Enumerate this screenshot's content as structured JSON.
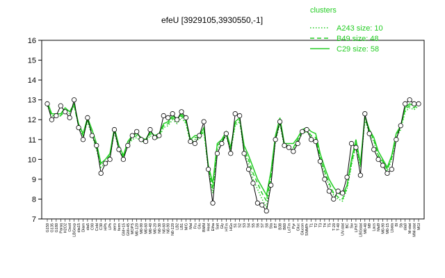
{
  "chart_data": {
    "type": "line",
    "title": "efeU [3929105,3930550,-1]",
    "xlabel": "",
    "ylabel": "",
    "ylim": [
      7,
      16
    ],
    "yticks": [
      7,
      8,
      9,
      10,
      11,
      12,
      13,
      14,
      15,
      16
    ],
    "grid": false,
    "legend": {
      "title": "clusters",
      "placement": "top-right",
      "entries": [
        {
          "label": "A243 size: 10",
          "style": "dotted"
        },
        {
          "label": "B49 size: 48",
          "style": "dashed"
        },
        {
          "label": "C29 size: 58",
          "style": "solid"
        }
      ]
    },
    "x_tick_labels": [
      "G150",
      "G135",
      "G180",
      "Paraq",
      "H2O2",
      "Oxctl",
      "LBGexp",
      "dia15",
      "Diam",
      "dia5",
      "C90",
      "Cold",
      "C30",
      "HPh",
      "LPh",
      "aero",
      "ferm",
      "GM+15",
      "GM+45",
      "MOPS",
      "M0-120",
      "M0-90",
      "M0-60",
      "M0-40",
      "M0-20",
      "N0-30",
      "N0-60",
      "N0-90",
      "N0-120",
      "LB2",
      "LB1",
      "M/G",
      "Mal",
      "Fru",
      "Glu",
      "BMM",
      "Heat",
      "Etha",
      "Salt",
      "Gly",
      "HTm",
      "HGs",
      "S1",
      "S2",
      "S3",
      "S4",
      "S5",
      "S6",
      "S7",
      "S8",
      "Sta",
      "BT",
      "B38",
      "B60",
      "LoTm",
      "Pyr",
      "Gluc",
      "Glucon",
      "SMMPr",
      "T1",
      "T2",
      "T3",
      "T4",
      "T5",
      "T-20",
      "T-40",
      "UV-stat",
      "BC",
      "Sw",
      "LPhT",
      "LBGstat",
      "M0-40",
      "M9",
      "Lacs",
      "Mal9",
      "M0-90",
      "M0-15",
      "Lbata",
      "Bl",
      "Sb",
      "dia0",
      "M-stat",
      "MM-stat",
      "MGl"
    ],
    "series": [
      {
        "name": "C29 size: 58",
        "style": "solid",
        "color": "#22cc22",
        "values": [
          12.9,
          12.3,
          12.3,
          12.3,
          12.6,
          12.4,
          12.8,
          11.8,
          11.3,
          12.1,
          11.5,
          10.8,
          9.8,
          10.0,
          10.3,
          11.6,
          10.7,
          10.2,
          10.9,
          11.2,
          11.3,
          11.1,
          11.0,
          11.4,
          11.2,
          11.3,
          11.8,
          11.9,
          12.2,
          12.0,
          12.3,
          12.0,
          11.0,
          11.2,
          11.2,
          11.6,
          9.7,
          8.8,
          10.8,
          11.0,
          11.4,
          10.6,
          11.9,
          12.1,
          10.7,
          10.2,
          9.6,
          9.0,
          8.6,
          8.2,
          9.4,
          11.2,
          12.1,
          10.8,
          10.8,
          10.8,
          11.1,
          11.5,
          11.6,
          11.4,
          11.3,
          10.3,
          9.6,
          9.0,
          8.6,
          8.3,
          8.2,
          8.7,
          10.0,
          11.0,
          9.8,
          12.2,
          11.5,
          11.1,
          10.4,
          10.0,
          9.6,
          10.2,
          11.3,
          11.7,
          12.6,
          12.8,
          12.7,
          12.9
        ]
      },
      {
        "name": "B49 size: 48",
        "style": "dashed",
        "color": "#22cc22",
        "values": [
          12.8,
          12.2,
          12.2,
          12.2,
          12.5,
          12.4,
          12.7,
          11.7,
          11.2,
          12.0,
          11.3,
          10.6,
          9.7,
          9.9,
          10.2,
          11.5,
          10.6,
          10.1,
          10.8,
          11.1,
          11.2,
          11.0,
          10.9,
          11.3,
          11.1,
          11.2,
          11.7,
          11.8,
          12.1,
          11.9,
          12.2,
          11.9,
          10.9,
          11.1,
          11.1,
          11.5,
          9.6,
          8.5,
          10.7,
          10.9,
          11.3,
          10.5,
          11.8,
          12.0,
          10.5,
          10.0,
          9.3,
          8.8,
          8.3,
          7.9,
          9.2,
          11.0,
          11.9,
          10.7,
          10.7,
          10.6,
          11.0,
          11.4,
          11.5,
          11.2,
          11.1,
          10.1,
          9.4,
          8.8,
          8.3,
          8.1,
          8.0,
          8.6,
          9.8,
          10.8,
          9.7,
          12.1,
          11.4,
          11.0,
          10.2,
          9.9,
          9.5,
          10.1,
          11.2,
          11.6,
          12.5,
          12.7,
          12.6,
          12.8
        ]
      },
      {
        "name": "A243 size: 10",
        "style": "dotted",
        "color": "#22cc22",
        "values": [
          12.7,
          12.2,
          12.1,
          12.2,
          12.4,
          12.3,
          12.7,
          11.7,
          11.2,
          11.9,
          11.2,
          10.5,
          9.6,
          9.8,
          10.1,
          11.4,
          10.5,
          10.1,
          10.7,
          11.0,
          11.1,
          10.9,
          10.9,
          11.2,
          11.0,
          11.1,
          11.6,
          11.7,
          12.0,
          11.8,
          12.1,
          11.8,
          10.8,
          11.0,
          11.0,
          11.4,
          9.5,
          8.3,
          10.5,
          10.8,
          11.2,
          10.4,
          11.7,
          11.9,
          10.4,
          9.8,
          9.0,
          8.5,
          8.0,
          7.6,
          9.0,
          10.9,
          11.8,
          10.6,
          10.6,
          10.5,
          10.9,
          11.3,
          11.4,
          11.1,
          11.0,
          10.0,
          9.3,
          8.7,
          8.2,
          8.0,
          7.9,
          8.5,
          9.7,
          10.7,
          9.6,
          12.0,
          11.3,
          10.9,
          10.1,
          9.8,
          9.4,
          10.0,
          11.1,
          11.5,
          12.4,
          12.6,
          12.5,
          12.7
        ]
      },
      {
        "name": "",
        "style": "line-with-points",
        "color": "#000000",
        "values": [
          12.8,
          12.0,
          12.2,
          12.7,
          12.4,
          12.1,
          13.0,
          11.6,
          11.0,
          12.1,
          11.2,
          10.7,
          9.3,
          9.8,
          10.0,
          11.5,
          10.5,
          10.0,
          10.7,
          11.2,
          11.4,
          11.0,
          10.9,
          11.5,
          11.1,
          11.2,
          12.2,
          12.1,
          12.3,
          12.0,
          12.4,
          12.1,
          10.9,
          10.8,
          11.2,
          11.9,
          9.5,
          7.8,
          10.3,
          10.8,
          11.3,
          10.3,
          12.3,
          12.2,
          10.3,
          9.5,
          8.8,
          7.8,
          7.7,
          7.4,
          8.7,
          11.0,
          11.9,
          10.7,
          10.6,
          10.4,
          10.8,
          11.4,
          11.5,
          11.0,
          10.9,
          9.9,
          9.0,
          8.4,
          8.0,
          8.4,
          8.3,
          9.1,
          10.8,
          10.6,
          9.2,
          12.3,
          11.3,
          10.5,
          10.0,
          9.7,
          9.3,
          9.5,
          11.0,
          11.7,
          12.8,
          13.0,
          12.8,
          12.8
        ]
      }
    ]
  }
}
